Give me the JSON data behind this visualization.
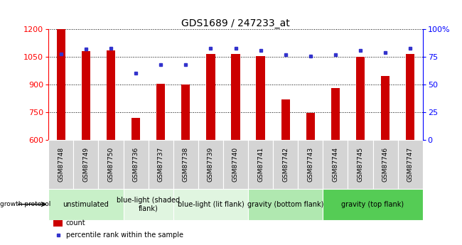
{
  "title": "GDS1689 / 247233_at",
  "samples": [
    "GSM87748",
    "GSM87749",
    "GSM87750",
    "GSM87736",
    "GSM87737",
    "GSM87738",
    "GSM87739",
    "GSM87740",
    "GSM87741",
    "GSM87742",
    "GSM87743",
    "GSM87744",
    "GSM87745",
    "GSM87746",
    "GSM87747"
  ],
  "counts": [
    1200,
    1080,
    1085,
    720,
    905,
    900,
    1065,
    1065,
    1055,
    820,
    745,
    880,
    1050,
    945,
    1065
  ],
  "percentile": [
    78,
    82,
    83,
    60,
    68,
    68,
    83,
    83,
    81,
    77,
    76,
    77,
    81,
    79,
    83
  ],
  "ymin": 600,
  "ymax": 1200,
  "yticks": [
    600,
    750,
    900,
    1050,
    1200
  ],
  "right_yticks": [
    0,
    25,
    50,
    75,
    100
  ],
  "bar_color": "#cc0000",
  "dot_color": "#3333cc",
  "bar_width": 0.35,
  "groups": [
    {
      "label": "unstimulated",
      "start": 0,
      "end": 3,
      "color": "#c8f0c8"
    },
    {
      "label": "blue-light (shaded\nflank)",
      "start": 3,
      "end": 5,
      "color": "#e0f5e0"
    },
    {
      "label": "blue-light (lit flank)",
      "start": 5,
      "end": 8,
      "color": "#e0f5e0"
    },
    {
      "label": "gravity (bottom flank)",
      "start": 8,
      "end": 11,
      "color": "#b0e8b0"
    },
    {
      "label": "gravity (top flank)",
      "start": 11,
      "end": 15,
      "color": "#55cc55"
    }
  ],
  "protocol_label": "growth protocol",
  "legend_count_label": "count",
  "legend_pct_label": "percentile rank within the sample",
  "title_fontsize": 10,
  "axis_tick_fontsize": 8,
  "sample_fontsize": 6.5,
  "group_fontsize": 7,
  "legend_fontsize": 7
}
